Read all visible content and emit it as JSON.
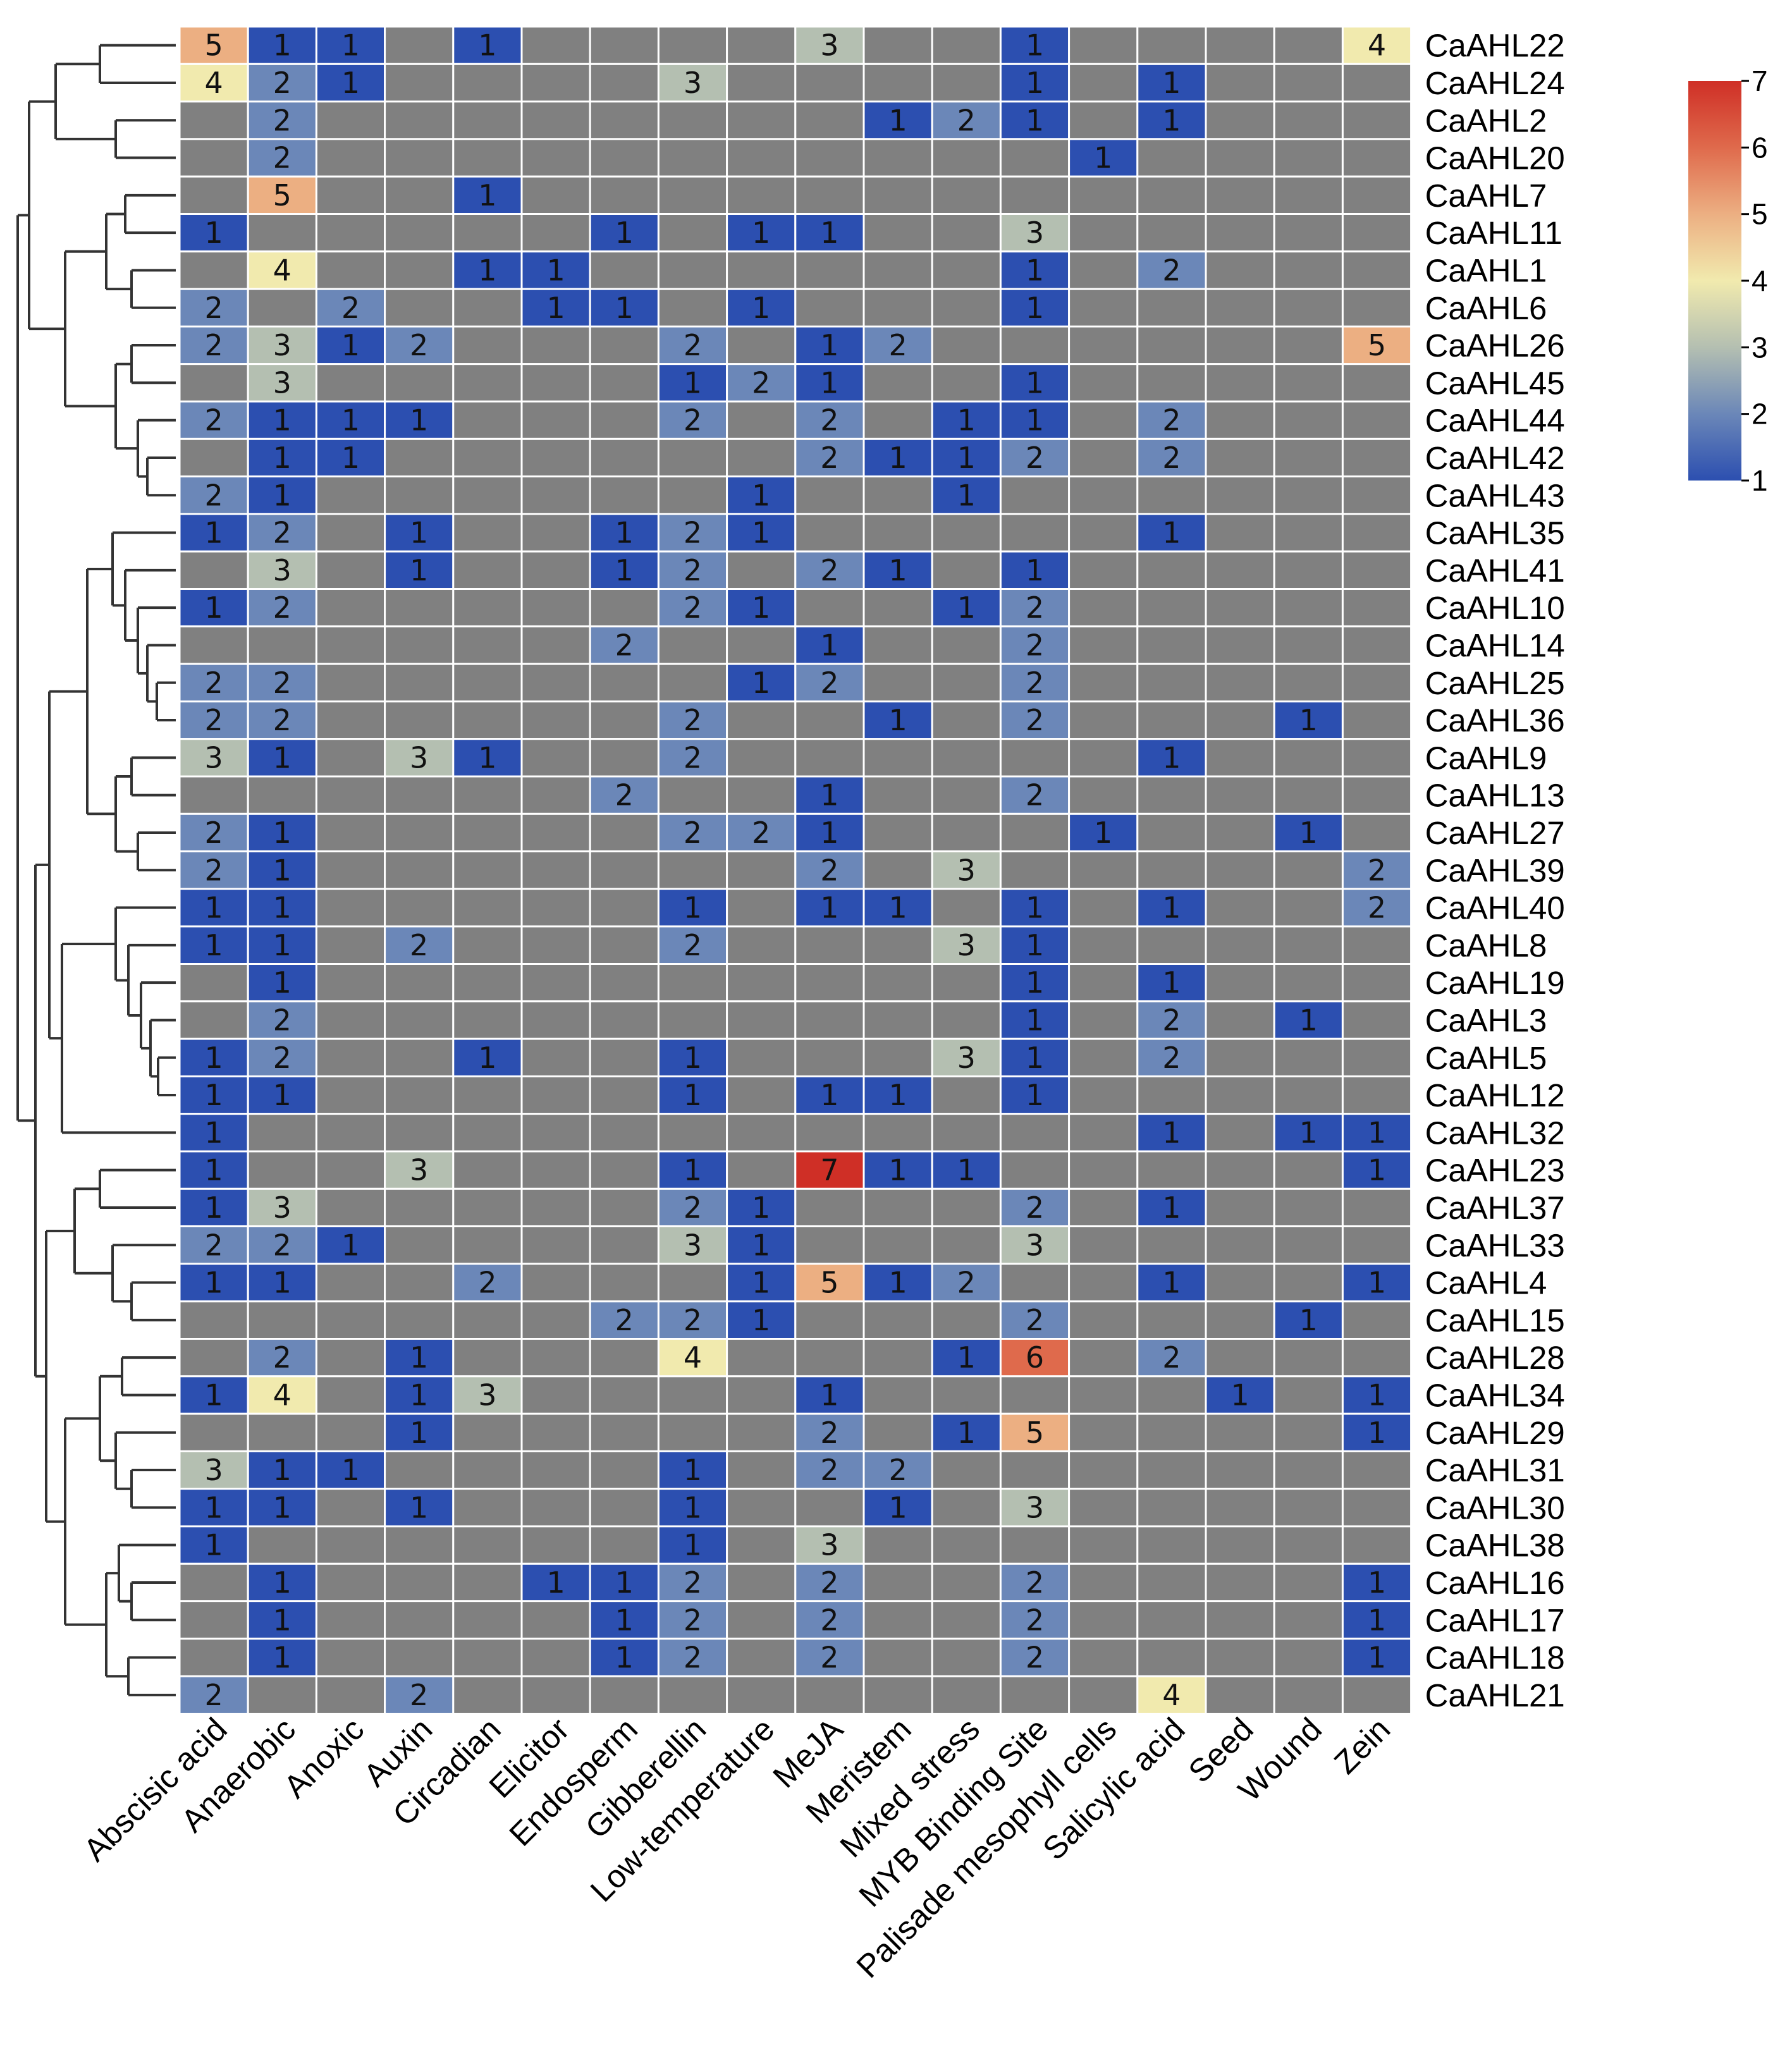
{
  "chart_data": {
    "type": "heatmap",
    "title": "",
    "xlabel": "",
    "ylabel": "",
    "columns": [
      "Abscisic acid",
      "Anaerobic",
      "Anoxic",
      "Auxin",
      "Circadian",
      "Elicitor",
      "Endosperm",
      "Gibberellin",
      "Low-temperature",
      "MeJA",
      "Meristem",
      "Mixed stress",
      "MYB Binding Site",
      "Palisade mesophyll cells",
      "Salicylic acid",
      "Seed",
      "Wound",
      "Zein"
    ],
    "rows": [
      "CaAHL22",
      "CaAHL24",
      "CaAHL2",
      "CaAHL20",
      "CaAHL7",
      "CaAHL11",
      "CaAHL1",
      "CaAHL6",
      "CaAHL26",
      "CaAHL45",
      "CaAHL44",
      "CaAHL42",
      "CaAHL43",
      "CaAHL35",
      "CaAHL41",
      "CaAHL10",
      "CaAHL14",
      "CaAHL25",
      "CaAHL36",
      "CaAHL9",
      "CaAHL13",
      "CaAHL27",
      "CaAHL39",
      "CaAHL40",
      "CaAHL8",
      "CaAHL19",
      "CaAHL3",
      "CaAHL5",
      "CaAHL12",
      "CaAHL32",
      "CaAHL23",
      "CaAHL37",
      "CaAHL33",
      "CaAHL4",
      "CaAHL15",
      "CaAHL28",
      "CaAHL34",
      "CaAHL29",
      "CaAHL31",
      "CaAHL30",
      "CaAHL38",
      "CaAHL16",
      "CaAHL17",
      "CaAHL18",
      "CaAHL21"
    ],
    "values": [
      [
        5,
        1,
        1,
        0,
        1,
        0,
        0,
        0,
        0,
        3,
        0,
        0,
        1,
        0,
        0,
        0,
        0,
        4
      ],
      [
        4,
        2,
        1,
        0,
        0,
        0,
        0,
        3,
        0,
        0,
        0,
        0,
        1,
        0,
        1,
        0,
        0,
        0
      ],
      [
        0,
        2,
        0,
        0,
        0,
        0,
        0,
        0,
        0,
        0,
        1,
        2,
        1,
        0,
        1,
        0,
        0,
        0
      ],
      [
        0,
        2,
        0,
        0,
        0,
        0,
        0,
        0,
        0,
        0,
        0,
        0,
        0,
        1,
        0,
        0,
        0,
        0
      ],
      [
        0,
        5,
        0,
        0,
        1,
        0,
        0,
        0,
        0,
        0,
        0,
        0,
        0,
        0,
        0,
        0,
        0,
        0
      ],
      [
        1,
        0,
        0,
        0,
        0,
        0,
        1,
        0,
        1,
        1,
        0,
        0,
        3,
        0,
        0,
        0,
        0,
        0
      ],
      [
        0,
        4,
        0,
        0,
        1,
        1,
        0,
        0,
        0,
        0,
        0,
        0,
        1,
        0,
        2,
        0,
        0,
        0
      ],
      [
        2,
        0,
        2,
        0,
        0,
        1,
        1,
        0,
        1,
        0,
        0,
        0,
        1,
        0,
        0,
        0,
        0,
        0
      ],
      [
        2,
        3,
        1,
        2,
        0,
        0,
        0,
        2,
        0,
        1,
        2,
        0,
        0,
        0,
        0,
        0,
        0,
        5
      ],
      [
        0,
        3,
        0,
        0,
        0,
        0,
        0,
        1,
        2,
        1,
        0,
        0,
        1,
        0,
        0,
        0,
        0,
        0
      ],
      [
        2,
        1,
        1,
        1,
        0,
        0,
        0,
        2,
        0,
        2,
        0,
        1,
        1,
        0,
        2,
        0,
        0,
        0
      ],
      [
        0,
        1,
        1,
        0,
        0,
        0,
        0,
        0,
        0,
        2,
        1,
        1,
        2,
        0,
        2,
        0,
        0,
        0
      ],
      [
        2,
        1,
        0,
        0,
        0,
        0,
        0,
        0,
        1,
        0,
        0,
        1,
        0,
        0,
        0,
        0,
        0,
        0
      ],
      [
        1,
        2,
        0,
        1,
        0,
        0,
        1,
        2,
        1,
        0,
        0,
        0,
        0,
        0,
        1,
        0,
        0,
        0
      ],
      [
        0,
        3,
        0,
        1,
        0,
        0,
        1,
        2,
        0,
        2,
        1,
        0,
        1,
        0,
        0,
        0,
        0,
        0
      ],
      [
        1,
        2,
        0,
        0,
        0,
        0,
        0,
        2,
        1,
        0,
        0,
        1,
        2,
        0,
        0,
        0,
        0,
        0
      ],
      [
        0,
        0,
        0,
        0,
        0,
        0,
        2,
        0,
        0,
        1,
        0,
        0,
        2,
        0,
        0,
        0,
        0,
        0
      ],
      [
        2,
        2,
        0,
        0,
        0,
        0,
        0,
        0,
        1,
        2,
        0,
        0,
        2,
        0,
        0,
        0,
        0,
        0
      ],
      [
        2,
        2,
        0,
        0,
        0,
        0,
        0,
        2,
        0,
        0,
        1,
        0,
        2,
        0,
        0,
        0,
        1,
        0
      ],
      [
        3,
        1,
        0,
        3,
        1,
        0,
        0,
        2,
        0,
        0,
        0,
        0,
        0,
        0,
        1,
        0,
        0,
        0
      ],
      [
        0,
        0,
        0,
        0,
        0,
        0,
        2,
        0,
        0,
        1,
        0,
        0,
        2,
        0,
        0,
        0,
        0,
        0
      ],
      [
        2,
        1,
        0,
        0,
        0,
        0,
        0,
        2,
        2,
        1,
        0,
        0,
        0,
        1,
        0,
        0,
        1,
        0
      ],
      [
        2,
        1,
        0,
        0,
        0,
        0,
        0,
        0,
        0,
        2,
        0,
        3,
        0,
        0,
        0,
        0,
        0,
        2
      ],
      [
        1,
        1,
        0,
        0,
        0,
        0,
        0,
        1,
        0,
        1,
        1,
        0,
        1,
        0,
        1,
        0,
        0,
        2
      ],
      [
        1,
        1,
        0,
        2,
        0,
        0,
        0,
        2,
        0,
        0,
        0,
        3,
        1,
        0,
        0,
        0,
        0,
        0
      ],
      [
        0,
        1,
        0,
        0,
        0,
        0,
        0,
        0,
        0,
        0,
        0,
        0,
        1,
        0,
        1,
        0,
        0,
        0
      ],
      [
        0,
        2,
        0,
        0,
        0,
        0,
        0,
        0,
        0,
        0,
        0,
        0,
        1,
        0,
        2,
        0,
        1,
        0
      ],
      [
        1,
        2,
        0,
        0,
        1,
        0,
        0,
        1,
        0,
        0,
        0,
        3,
        1,
        0,
        2,
        0,
        0,
        0
      ],
      [
        1,
        1,
        0,
        0,
        0,
        0,
        0,
        1,
        0,
        1,
        1,
        0,
        1,
        0,
        0,
        0,
        0,
        0
      ],
      [
        1,
        0,
        0,
        0,
        0,
        0,
        0,
        0,
        0,
        0,
        0,
        0,
        0,
        0,
        1,
        0,
        1,
        1
      ],
      [
        1,
        0,
        0,
        3,
        0,
        0,
        0,
        1,
        0,
        7,
        1,
        1,
        0,
        0,
        0,
        0,
        0,
        1
      ],
      [
        1,
        3,
        0,
        0,
        0,
        0,
        0,
        2,
        1,
        0,
        0,
        0,
        2,
        0,
        1,
        0,
        0,
        0
      ],
      [
        2,
        2,
        1,
        0,
        0,
        0,
        0,
        3,
        1,
        0,
        0,
        0,
        3,
        0,
        0,
        0,
        0,
        0
      ],
      [
        1,
        1,
        0,
        0,
        2,
        0,
        0,
        0,
        1,
        5,
        1,
        2,
        0,
        0,
        1,
        0,
        0,
        1
      ],
      [
        0,
        0,
        0,
        0,
        0,
        0,
        2,
        2,
        1,
        0,
        0,
        0,
        2,
        0,
        0,
        0,
        1,
        0
      ],
      [
        0,
        2,
        0,
        1,
        0,
        0,
        0,
        4,
        0,
        0,
        0,
        1,
        6,
        0,
        2,
        0,
        0,
        0
      ],
      [
        1,
        4,
        0,
        1,
        3,
        0,
        0,
        0,
        0,
        1,
        0,
        0,
        0,
        0,
        0,
        1,
        0,
        1
      ],
      [
        0,
        0,
        0,
        1,
        0,
        0,
        0,
        0,
        0,
        2,
        0,
        1,
        5,
        0,
        0,
        0,
        0,
        1
      ],
      [
        3,
        1,
        1,
        0,
        0,
        0,
        0,
        1,
        0,
        2,
        2,
        0,
        0,
        0,
        0,
        0,
        0,
        0
      ],
      [
        1,
        1,
        0,
        1,
        0,
        0,
        0,
        1,
        0,
        0,
        1,
        0,
        3,
        0,
        0,
        0,
        0,
        0
      ],
      [
        1,
        0,
        0,
        0,
        0,
        0,
        0,
        1,
        0,
        3,
        0,
        0,
        0,
        0,
        0,
        0,
        0,
        0
      ],
      [
        0,
        1,
        0,
        0,
        0,
        1,
        1,
        2,
        0,
        2,
        0,
        0,
        2,
        0,
        0,
        0,
        0,
        1
      ],
      [
        0,
        1,
        0,
        0,
        0,
        0,
        1,
        2,
        0,
        2,
        0,
        0,
        2,
        0,
        0,
        0,
        0,
        1
      ],
      [
        0,
        1,
        0,
        0,
        0,
        0,
        1,
        2,
        0,
        2,
        0,
        0,
        2,
        0,
        0,
        0,
        0,
        1
      ],
      [
        2,
        0,
        0,
        2,
        0,
        0,
        0,
        0,
        0,
        0,
        0,
        0,
        0,
        0,
        4,
        0,
        0,
        0
      ]
    ],
    "missing_value": 0,
    "missing_color": "#808080",
    "colorbar": {
      "min": 1,
      "max": 7,
      "ticks": [
        "1",
        "2",
        "3",
        "4",
        "5",
        "6",
        "7"
      ],
      "colors": {
        "1": "#2c4fb0",
        "2": "#6b87b8",
        "3": "#b4bfb1",
        "4": "#f1eaae",
        "5": "#ecaf82",
        "6": "#df6a4c",
        "7": "#cf2f26"
      }
    },
    "legend": "top-right",
    "grid": true,
    "dendrogram": "rows"
  }
}
